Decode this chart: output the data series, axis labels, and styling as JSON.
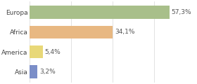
{
  "categories": [
    "Europa",
    "Africa",
    "America",
    "Asia"
  ],
  "values": [
    57.3,
    34.1,
    5.4,
    3.2
  ],
  "labels": [
    "57,3%",
    "34,1%",
    "5,4%",
    "3,2%"
  ],
  "bar_colors": [
    "#a8bf8a",
    "#e8b882",
    "#e8d878",
    "#7b8ec8"
  ],
  "background_color": "#ffffff",
  "xlim": [
    0,
    68
  ],
  "label_fontsize": 6.5,
  "category_fontsize": 6.5,
  "bar_height": 0.65
}
